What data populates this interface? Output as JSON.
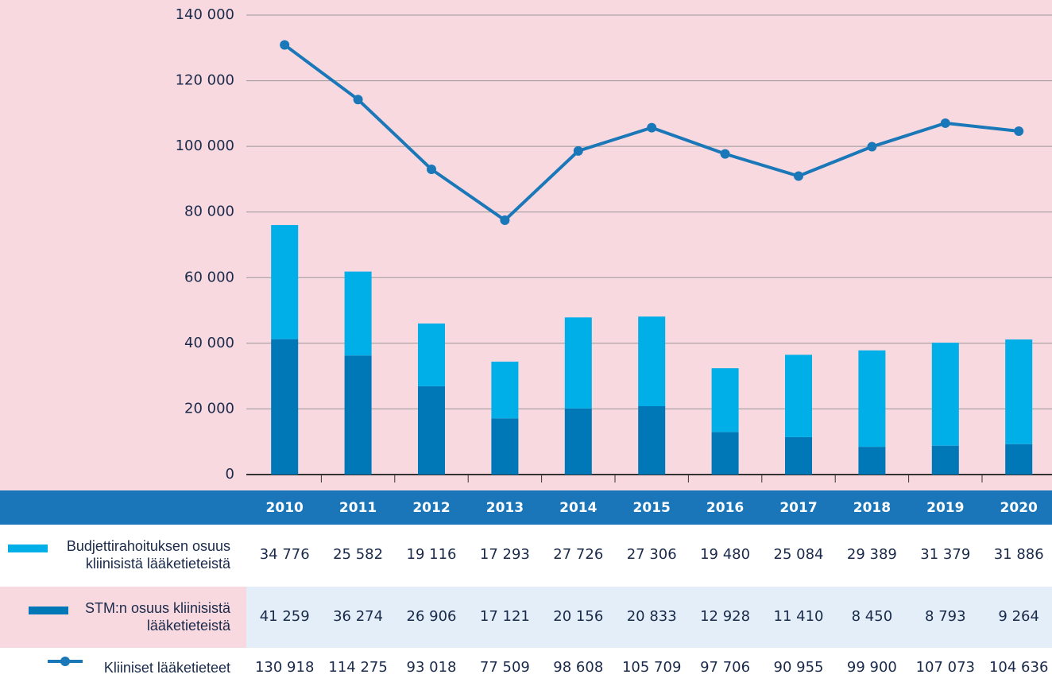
{
  "chart_data": {
    "type": "bar",
    "categories": [
      "2010",
      "2011",
      "2012",
      "2013",
      "2014",
      "2015",
      "2016",
      "2017",
      "2018",
      "2019",
      "2020"
    ],
    "series": [
      {
        "name": "Budjettirahoituksen osuus kliinisistä lääketieteistä",
        "type": "bar",
        "color": "#00aee8",
        "values": [
          34776,
          25582,
          19116,
          17293,
          27726,
          27306,
          19480,
          25084,
          29389,
          31379,
          31886
        ],
        "value_labels": [
          "34 776",
          "25 582",
          "19 116",
          "17 293",
          "27 726",
          "27 306",
          "19 480",
          "25 084",
          "29 389",
          "31 379",
          "31 886"
        ]
      },
      {
        "name": "STM:n osuus kliinisistä lääketieteistä",
        "type": "bar",
        "color": "#0077b6",
        "values": [
          41259,
          36274,
          26906,
          17121,
          20156,
          20833,
          12928,
          11410,
          8450,
          8793,
          9264
        ],
        "value_labels": [
          "41 259",
          "36 274",
          "26 906",
          "17 121",
          "20 156",
          "20 833",
          "12 928",
          "11 410",
          "8 450",
          "8 793",
          "9 264"
        ]
      },
      {
        "name": "Kliiniset lääketieteet",
        "type": "line",
        "color": "#1a78b9",
        "values": [
          130918,
          114275,
          93018,
          77509,
          98608,
          105709,
          97706,
          90955,
          99900,
          107073,
          104636
        ],
        "value_labels": [
          "130 918",
          "114 275",
          "93 018",
          "77 509",
          "98 608",
          "105 709",
          "97 706",
          "90 955",
          "99 900",
          "107 073",
          "104 636"
        ]
      }
    ],
    "stacked": true,
    "ylim": [
      0,
      140000
    ],
    "yticks": [
      0,
      {
        "value": 20000,
        "label": "20 000"
      },
      {
        "value": 40000,
        "label": "40 000"
      },
      {
        "value": 60000,
        "label": "60 000"
      },
      {
        "value": 80000,
        "label": "80 000"
      },
      {
        "value": 100000,
        "label": "100 000"
      },
      {
        "value": 120000,
        "label": "120 000"
      },
      {
        "value": 140000,
        "label": "140 000"
      }
    ],
    "grid": true
  }
}
